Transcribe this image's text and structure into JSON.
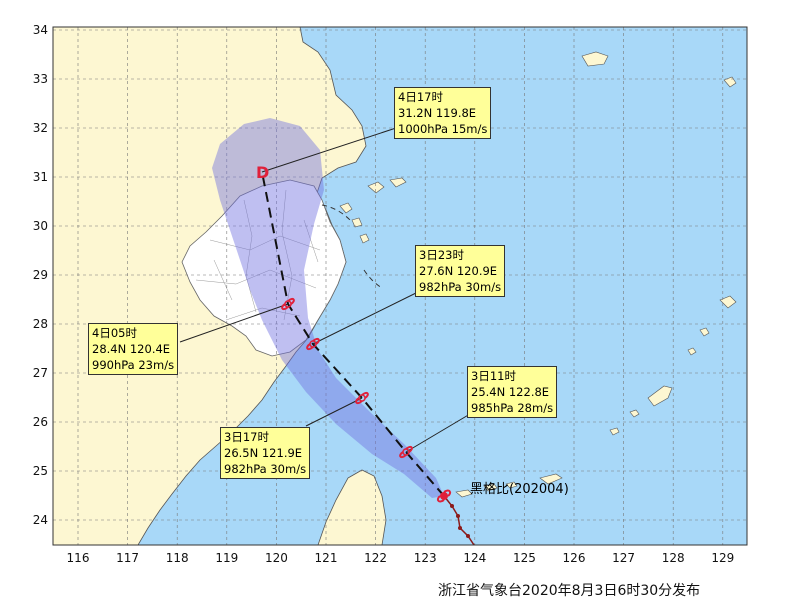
{
  "storm": {
    "name": "黑格比(202004)"
  },
  "footer": "浙江省气象台2020年8月3日6时30分发布",
  "axes": {
    "lon_ticks": [
      "116",
      "117",
      "118",
      "119",
      "120",
      "121",
      "122",
      "123",
      "124",
      "125",
      "126",
      "127",
      "128",
      "129"
    ],
    "lat_ticks": [
      "34",
      "33",
      "32",
      "31",
      "30",
      "29",
      "28",
      "27",
      "26",
      "25",
      "24"
    ]
  },
  "callouts": [
    {
      "id": "c1",
      "time": "4日17时",
      "pos": "31.2N 119.8E",
      "info": "1000hPa 15m/s"
    },
    {
      "id": "c2",
      "time": "3日23时",
      "pos": "27.6N 120.9E",
      "info": "982hPa 30m/s"
    },
    {
      "id": "c3",
      "time": "4日05时",
      "pos": "28.4N 120.4E",
      "info": "990hPa 23m/s"
    },
    {
      "id": "c4",
      "time": "3日11时",
      "pos": "25.4N 122.8E",
      "info": "985hPa 28m/s"
    },
    {
      "id": "c5",
      "time": "3日17时",
      "pos": "26.5N 121.9E",
      "info": "982hPa 30m/s"
    }
  ],
  "colors": {
    "sea": "#a8d8f8",
    "land": "#fdf7d2",
    "zhejiang": "#ffffff",
    "cone": "#7070e0",
    "track_past": "#8b1a1a",
    "symbol": "#e0203a",
    "callout_bg": "#ffff99"
  },
  "track_forecast": [
    {
      "lon": 123.5,
      "lat": 24.5,
      "symbol": "typhoon"
    },
    {
      "lon": 122.8,
      "lat": 25.4,
      "symbol": "typhoon"
    },
    {
      "lon": 121.9,
      "lat": 26.5,
      "symbol": "typhoon"
    },
    {
      "lon": 120.9,
      "lat": 27.6,
      "symbol": "typhoon"
    },
    {
      "lon": 120.4,
      "lat": 28.4,
      "symbol": "typhoon"
    },
    {
      "lon": 119.8,
      "lat": 31.2,
      "symbol": "depression"
    }
  ]
}
